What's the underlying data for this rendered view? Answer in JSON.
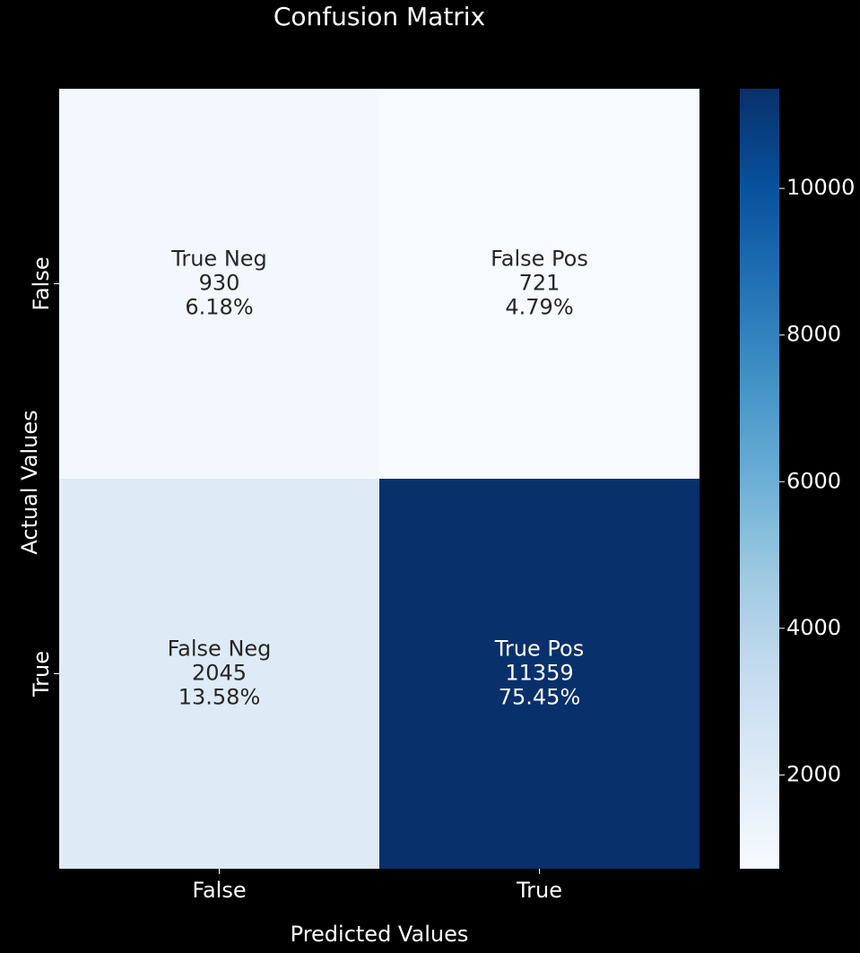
{
  "chart_data": {
    "type": "heatmap",
    "title": "Confusion Matrix",
    "xlabel": "Predicted Values",
    "ylabel": "Actual Values",
    "x_categories": [
      "False",
      "True"
    ],
    "y_categories": [
      "False",
      "True"
    ],
    "values": [
      [
        930,
        721
      ],
      [
        2045,
        11359
      ]
    ],
    "cell_labels": [
      [
        {
          "name": "True Neg",
          "count": "930",
          "percent": "6.18%"
        },
        {
          "name": "False Pos",
          "count": "721",
          "percent": "4.79%"
        }
      ],
      [
        {
          "name": "False Neg",
          "count": "2045",
          "percent": "13.58%"
        },
        {
          "name": "True Pos",
          "count": "11359",
          "percent": "75.45%"
        }
      ]
    ],
    "colormap": "Blues",
    "colorbar": {
      "range": [
        721,
        11359
      ],
      "ticks": [
        2000,
        4000,
        6000,
        8000,
        10000
      ]
    },
    "colors": {
      "background": "#000000",
      "text_dark": "#262626",
      "text_light": "#ffffff"
    }
  }
}
